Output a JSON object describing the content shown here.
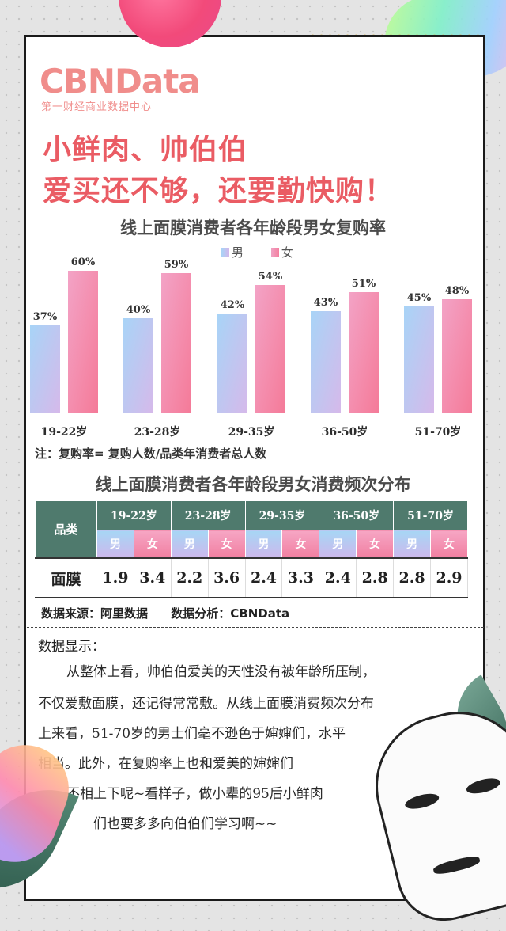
{
  "brand": {
    "name": "CBNData",
    "tagline": "第一财经商业数据中心"
  },
  "headline": [
    "小鲜肉、帅伯伯",
    "爱买还不够，还要勤快购！"
  ],
  "chart": {
    "title": "线上面膜消费者各年龄段男女复购率",
    "legend": {
      "male": "男",
      "female": "女"
    },
    "note": "注：复购率= 复购人数/品类年消费者总人数"
  },
  "chart_data": {
    "type": "bar",
    "title": "线上面膜消费者各年龄段男女复购率",
    "categories": [
      "19-22岁",
      "23-28岁",
      "29-35岁",
      "36-50岁",
      "51-70岁"
    ],
    "series": [
      {
        "name": "男",
        "values": [
          37,
          40,
          42,
          43,
          45
        ],
        "labels": [
          "37%",
          "40%",
          "42%",
          "43%",
          "45%"
        ]
      },
      {
        "name": "女",
        "values": [
          60,
          59,
          54,
          51,
          48
        ],
        "labels": [
          "60%",
          "59%",
          "54%",
          "51%",
          "48%"
        ]
      }
    ],
    "ylim": [
      0,
      100
    ],
    "grid": false,
    "legend_position": "top-center"
  },
  "table": {
    "title": "线上面膜消费者各年龄段男女消费频次分布",
    "category_header": "品类",
    "groups": [
      "19-22岁",
      "23-28岁",
      "29-35岁",
      "36-50岁",
      "51-70岁"
    ],
    "gender_labels": [
      "男",
      "女"
    ],
    "row_label": "面膜",
    "values": [
      "1.9",
      "3.4",
      "2.2",
      "3.6",
      "2.4",
      "3.3",
      "2.4",
      "2.8",
      "2.8",
      "2.9"
    ]
  },
  "source": {
    "data": "数据来源：阿里数据",
    "analysis": "数据分析：CBNData"
  },
  "analysis": {
    "title": "数据显示：",
    "lines": [
      "从整体上看，帅伯伯爱美的天性没有被年龄所压制，",
      "不仅爱敷面膜，还记得常常敷。从线上面膜消费频次分布",
      "上来看，51-70岁的男士们毫不逊色于婶婶们，水平",
      "相当。此外，在复购率上也和爱美的婶婶们",
      "不相上下呢~看样子，做小辈的95后小鲜肉",
      "们也要多多向伯伯们学习啊~~"
    ]
  },
  "colors": {
    "brand": "#f08d8b",
    "headline": "#ea5c64",
    "male_bar": "#a8d4f7",
    "female_bar": "#f47e9e",
    "table_header": "#4f7a6d"
  }
}
